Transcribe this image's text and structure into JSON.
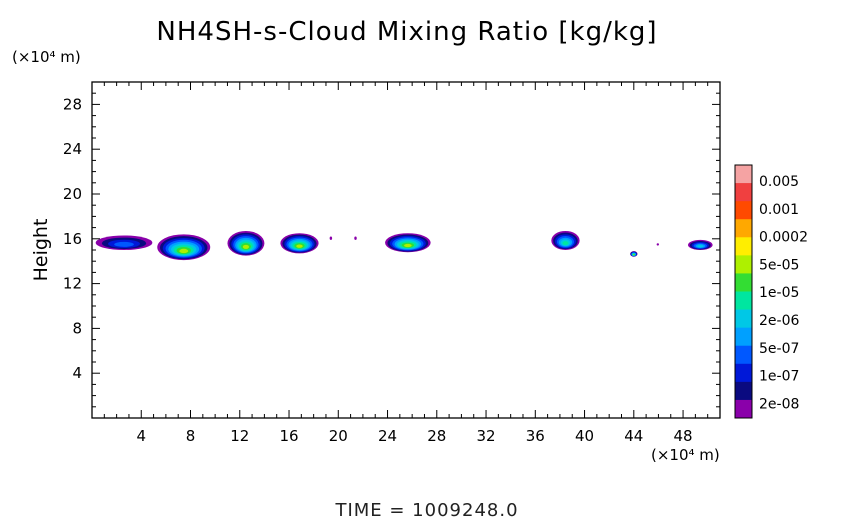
{
  "chart_data": {
    "type": "heatmap",
    "title": "NH4SH-s-Cloud Mixing Ratio [kg/kg]",
    "ylabel": "Height",
    "y_unit": "(×10⁴ m)",
    "x_unit": "(×10⁴ m)",
    "xlim": [
      0,
      51
    ],
    "ylim": [
      0,
      30
    ],
    "x_ticks": [
      "4",
      "8",
      "12",
      "16",
      "20",
      "24",
      "28",
      "32",
      "36",
      "40",
      "44",
      "48"
    ],
    "y_ticks": [
      "4",
      "8",
      "12",
      "16",
      "20",
      "24",
      "28"
    ],
    "colorbar": {
      "labels": [
        "0.005",
        "0.001",
        "0.0002",
        "5e-05",
        "1e-05",
        "2e-06",
        "5e-07",
        "1e-07",
        "2e-08"
      ],
      "colors": [
        "#f5a3a3",
        "#f04040",
        "#ff4a00",
        "#ffa800",
        "#ffee00",
        "#aef000",
        "#33dd33",
        "#00e6a0",
        "#00c8e6",
        "#00a0ff",
        "#0058ff",
        "#0018d8",
        "#0a0a80",
        "#8a00aa"
      ]
    },
    "cloud_patches": [
      {
        "x": [
          0.3,
          4.9
        ],
        "y": [
          15.0,
          16.3
        ],
        "peak": "1e-07"
      },
      {
        "x": [
          5.3,
          9.6
        ],
        "y": [
          14.1,
          16.4
        ],
        "peak": "1e-05"
      },
      {
        "x": [
          11.0,
          14.0
        ],
        "y": [
          14.5,
          16.7
        ],
        "peak": "1e-05"
      },
      {
        "x": [
          15.3,
          18.4
        ],
        "y": [
          14.7,
          16.5
        ],
        "peak": "1e-05"
      },
      {
        "x": [
          19.3,
          19.5
        ],
        "y": [
          15.9,
          16.2
        ],
        "peak": "2e-08"
      },
      {
        "x": [
          21.3,
          21.5
        ],
        "y": [
          15.9,
          16.2
        ],
        "peak": "2e-08"
      },
      {
        "x": [
          23.8,
          27.5
        ],
        "y": [
          14.8,
          16.5
        ],
        "peak": "1e-05"
      },
      {
        "x": [
          37.3,
          39.6
        ],
        "y": [
          15.0,
          16.7
        ],
        "peak": "2e-06"
      },
      {
        "x": [
          43.7,
          44.3
        ],
        "y": [
          14.4,
          14.9
        ],
        "peak": "1e-05"
      },
      {
        "x": [
          45.9,
          46.0
        ],
        "y": [
          15.4,
          15.6
        ],
        "peak": "2e-08"
      },
      {
        "x": [
          48.4,
          50.4
        ],
        "y": [
          15.0,
          15.9
        ],
        "peak": "5e-07"
      }
    ]
  },
  "footer": {
    "time_label": "TIME  =  1009248.0"
  }
}
